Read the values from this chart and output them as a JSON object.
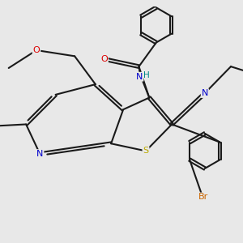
{
  "bg_color": "#e8e8e8",
  "line_color": "#1a1a1a",
  "bond_width": 1.5,
  "dbo": 0.06,
  "atom_colors": {
    "O": "#dd0000",
    "N": "#0000cc",
    "S": "#bbaa00",
    "Br": "#cc6600",
    "H": "#008888",
    "C": "#1a1a1a"
  },
  "xlim": [
    0,
    10
  ],
  "ylim": [
    0.5,
    10
  ]
}
